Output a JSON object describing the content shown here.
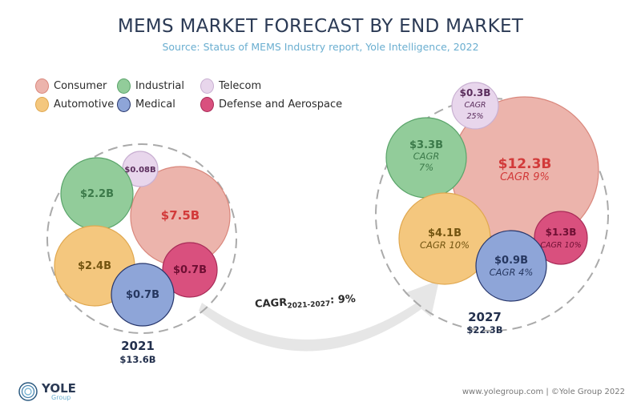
{
  "colors": {
    "Consumer": {
      "fill": "#ecb4ac",
      "stroke": "#d9877c",
      "text": "#d23a3a"
    },
    "Industrial": {
      "fill": "#92cc9a",
      "stroke": "#5aa46a",
      "text": "#3c7a4a"
    },
    "Telecom": {
      "fill": "#e8d6ec",
      "stroke": "#c9b0d2",
      "text": "#5a2d5c"
    },
    "Automotive": {
      "fill": "#f4c77e",
      "stroke": "#e0a850",
      "text": "#735410"
    },
    "Medical": {
      "fill": "#8ea5d8",
      "stroke": "#27366b",
      "text": "#263760"
    },
    "Defense and Aerospace": {
      "fill": "#d9507e",
      "stroke": "#a82c58",
      "text": "#6e0f33"
    }
  },
  "chart_data": {
    "type": "bubble",
    "title": "MEMS MARKET FORECAST BY END MARKET",
    "subtitle": "Source: Status of MEMS Industry report, Yole Intelligence, 2022",
    "legend": [
      "Consumer",
      "Industrial",
      "Telecom",
      "Automotive",
      "Medical",
      "Defense and Aerospace"
    ],
    "legend_placement": "top-left",
    "groups": [
      {
        "year": "2021",
        "total": "$13.6B",
        "items": [
          {
            "segment": "Consumer",
            "value": 7.5,
            "label": "$7.5B"
          },
          {
            "segment": "Industrial",
            "value": 2.2,
            "label": "$2.2B"
          },
          {
            "segment": "Telecom",
            "value": 0.08,
            "label": "$0.08B"
          },
          {
            "segment": "Automotive",
            "value": 2.4,
            "label": "$2.4B"
          },
          {
            "segment": "Medical",
            "value": 0.7,
            "label": "$0.7B"
          },
          {
            "segment": "Defense and Aerospace",
            "value": 0.7,
            "label": "$0.7B"
          }
        ]
      },
      {
        "year": "2027",
        "total": "$22.3B",
        "items": [
          {
            "segment": "Consumer",
            "value": 12.3,
            "label": "$12.3B",
            "cagr": "CAGR 9%"
          },
          {
            "segment": "Industrial",
            "value": 3.3,
            "label": "$3.3B",
            "cagr": "CAGR 7%"
          },
          {
            "segment": "Telecom",
            "value": 0.3,
            "label": "$0.3B",
            "cagr": "CAGR 25%"
          },
          {
            "segment": "Automotive",
            "value": 4.1,
            "label": "$4.1B",
            "cagr": "CAGR 10%"
          },
          {
            "segment": "Medical",
            "value": 0.9,
            "label": "$0.9B",
            "cagr": "CAGR 4%"
          },
          {
            "segment": "Defense and Aerospace",
            "value": 1.3,
            "label": "$1.3B",
            "cagr": "CAGR 10%"
          }
        ]
      }
    ],
    "overall_cagr": {
      "label": "CAGR",
      "period": "2021-2027",
      "value": ": 9%"
    }
  },
  "footer": {
    "logo_text": "YOLE",
    "logo_sub": "Group",
    "credit": "www.yolegroup.com | ©Yole Group 2022"
  }
}
